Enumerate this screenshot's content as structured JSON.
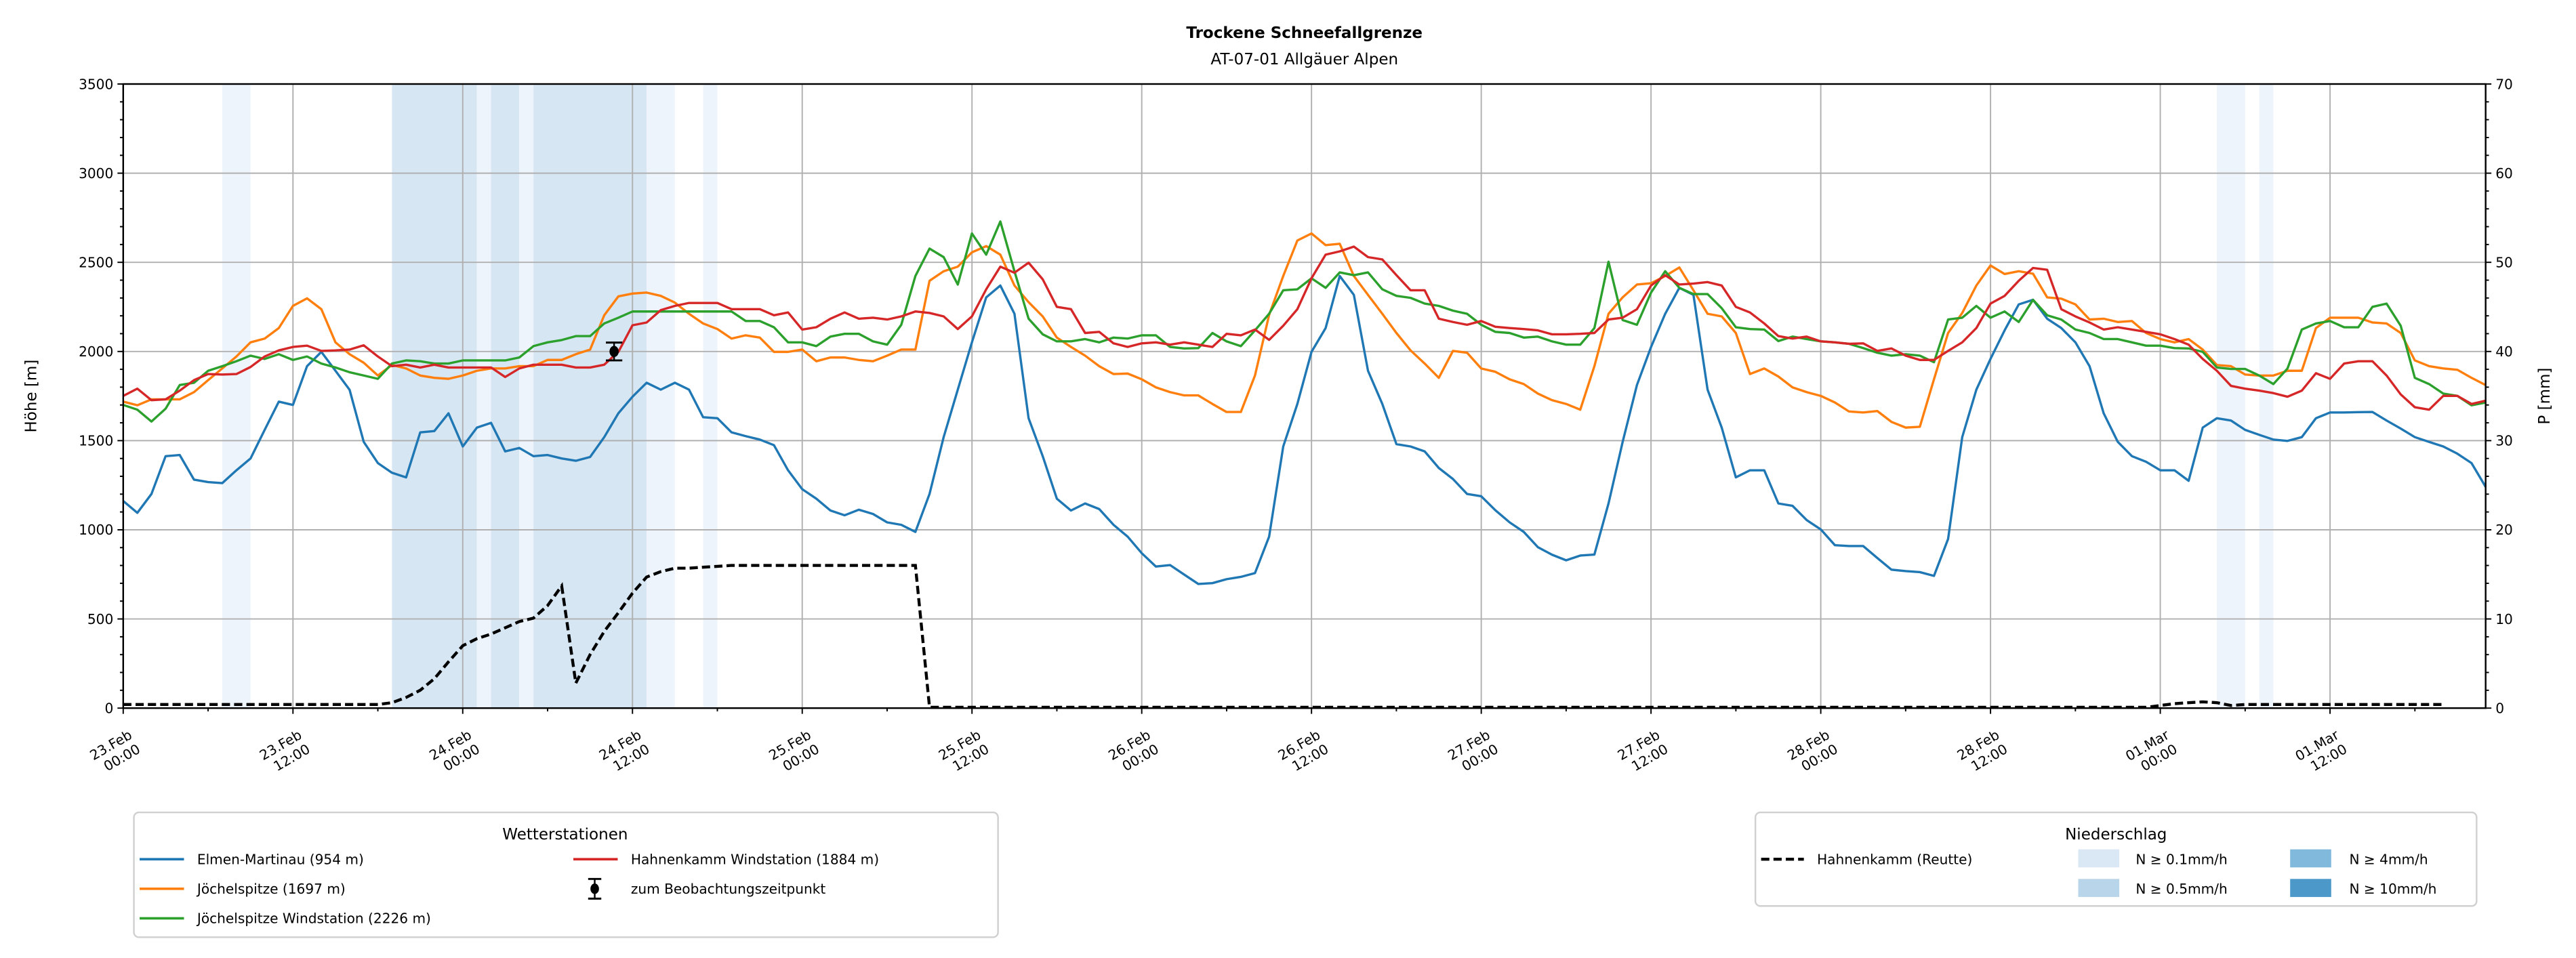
{
  "chart_data": {
    "type": "line",
    "title": "Trockene Schneefallgrenze",
    "subtitle": "AT-07-01 Allgäuer Alpen",
    "x_step_hours": 1,
    "x_range_hours": [
      0,
      167
    ],
    "x_ticks": [
      {
        "h": 0,
        "date": "23.Feb",
        "time": "00:00"
      },
      {
        "h": 12,
        "date": "23.Feb",
        "time": "12:00"
      },
      {
        "h": 24,
        "date": "24.Feb",
        "time": "00:00"
      },
      {
        "h": 36,
        "date": "24.Feb",
        "time": "12:00"
      },
      {
        "h": 48,
        "date": "25.Feb",
        "time": "00:00"
      },
      {
        "h": 60,
        "date": "25.Feb",
        "time": "12:00"
      },
      {
        "h": 72,
        "date": "26.Feb",
        "time": "00:00"
      },
      {
        "h": 84,
        "date": "26.Feb",
        "time": "12:00"
      },
      {
        "h": 96,
        "date": "27.Feb",
        "time": "00:00"
      },
      {
        "h": 108,
        "date": "27.Feb",
        "time": "12:00"
      },
      {
        "h": 120,
        "date": "28.Feb",
        "time": "00:00"
      },
      {
        "h": 132,
        "date": "28.Feb",
        "time": "12:00"
      },
      {
        "h": 144,
        "date": "01.Mar",
        "time": "00:00"
      },
      {
        "h": 156,
        "date": "01.Mar",
        "time": "12:00"
      }
    ],
    "ylabel": "Höhe [m]",
    "ylim": [
      0,
      3500
    ],
    "yticks": [
      "0",
      "500",
      "1000",
      "1500",
      "2000",
      "2500",
      "3000",
      "3500"
    ],
    "ylabel_right": "P [mm]",
    "ylim_right": [
      0,
      70
    ],
    "yticks_right": [
      "0",
      "10",
      "20",
      "30",
      "40",
      "50",
      "60",
      "70"
    ],
    "grid": true,
    "series": [
      {
        "name": "Elmen-Martinau (954 m)",
        "color": "#1f77b4",
        "values": [
          1161,
          1095,
          1201,
          1413,
          1419,
          1281,
          1267,
          1262,
          1334,
          1400,
          1560,
          1719,
          1700,
          1918,
          1998,
          1892,
          1785,
          1493,
          1374,
          1320,
          1294,
          1546,
          1554,
          1653,
          1467,
          1573,
          1600,
          1440,
          1459,
          1413,
          1419,
          1400,
          1387,
          1408,
          1520,
          1653,
          1746,
          1825,
          1786,
          1825,
          1786,
          1631,
          1626,
          1546,
          1525,
          1506,
          1475,
          1334,
          1228,
          1174,
          1108,
          1081,
          1113,
          1089,
          1042,
          1028,
          988,
          1201,
          1520,
          1786,
          2051,
          2304,
          2370,
          2211,
          1626,
          1413,
          1174,
          1108,
          1148,
          1116,
          1028,
          962,
          869,
          794,
          802,
          749,
          696,
          701,
          723,
          736,
          757,
          962,
          1467,
          1706,
          1998,
          2131,
          2423,
          2317,
          1892,
          1706,
          1480,
          1467,
          1440,
          1347,
          1285,
          1201,
          1188,
          1110,
          1042,
          988,
          903,
          860,
          829,
          856,
          861,
          1148,
          1493,
          1812,
          2025,
          2211,
          2357,
          2317,
          1786,
          1573,
          1294,
          1334,
          1334,
          1148,
          1135,
          1055,
          1002,
          914,
          909,
          909,
          842,
          776,
          768,
          763,
          741,
          949,
          1520,
          1786,
          1958,
          2118,
          2264,
          2290,
          2184,
          2131,
          2051,
          1918,
          1653,
          1493,
          1413,
          1382,
          1334,
          1334,
          1275,
          1573,
          1626,
          1613,
          1560,
          1533,
          1506,
          1499,
          1520,
          1626,
          1658,
          1658,
          1660,
          1661,
          1613,
          1568,
          1520,
          1493,
          1467,
          1427,
          1374,
          1241
        ]
      },
      {
        "name": "Jöchelspitze (1697 m)",
        "color": "#ff7f0e",
        "values": [
          1719,
          1698,
          1732,
          1732,
          1732,
          1772,
          1839,
          1905,
          1972,
          2051,
          2072,
          2131,
          2256,
          2298,
          2237,
          2051,
          1985,
          1937,
          1865,
          1924,
          1905,
          1865,
          1852,
          1847,
          1865,
          1892,
          1905,
          1905,
          1918,
          1918,
          1953,
          1953,
          1985,
          2011,
          2203,
          2309,
          2325,
          2330,
          2312,
          2274,
          2211,
          2157,
          2126,
          2072,
          2091,
          2078,
          1998,
          1998,
          2011,
          1945,
          1966,
          1966,
          1953,
          1945,
          1977,
          2011,
          2011,
          2397,
          2450,
          2476,
          2556,
          2591,
          2543,
          2370,
          2277,
          2197,
          2078,
          2025,
          1977,
          1918,
          1873,
          1876,
          1844,
          1799,
          1772,
          1754,
          1754,
          1706,
          1661,
          1661,
          1865,
          2205,
          2423,
          2622,
          2662,
          2596,
          2604,
          2423,
          2317,
          2211,
          2104,
          2006,
          1932,
          1852,
          2003,
          1993,
          1905,
          1886,
          1844,
          1817,
          1764,
          1727,
          1706,
          1674,
          1918,
          2211,
          2304,
          2375,
          2383,
          2423,
          2471,
          2343,
          2211,
          2197,
          2104,
          1873,
          1905,
          1860,
          1799,
          1772,
          1751,
          1714,
          1663,
          1658,
          1666,
          1605,
          1573,
          1578,
          1844,
          2104,
          2216,
          2370,
          2482,
          2434,
          2450,
          2436,
          2304,
          2296,
          2264,
          2179,
          2184,
          2165,
          2171,
          2104,
          2070,
          2051,
          2070,
          2011,
          1924,
          1918,
          1871,
          1865,
          1865,
          1892,
          1892,
          2131,
          2189,
          2189,
          2189,
          2163,
          2157,
          2104,
          1950,
          1918,
          1905,
          1897,
          1852,
          1812
        ]
      },
      {
        "name": "Jöchelspitze Windstation (2226 m)",
        "color": "#2ca02c",
        "values": [
          1700,
          1674,
          1607,
          1679,
          1812,
          1825,
          1892,
          1918,
          1945,
          1977,
          1958,
          1985,
          1953,
          1972,
          1932,
          1910,
          1884,
          1865,
          1847,
          1932,
          1950,
          1945,
          1932,
          1932,
          1950,
          1950,
          1950,
          1950,
          1966,
          2030,
          2051,
          2064,
          2086,
          2086,
          2157,
          2189,
          2224,
          2224,
          2224,
          2224,
          2224,
          2224,
          2224,
          2224,
          2171,
          2171,
          2136,
          2051,
          2051,
          2030,
          2083,
          2099,
          2099,
          2057,
          2038,
          2150,
          2423,
          2577,
          2529,
          2375,
          2662,
          2543,
          2729,
          2450,
          2184,
          2096,
          2057,
          2057,
          2070,
          2051,
          2078,
          2072,
          2091,
          2091,
          2025,
          2017,
          2019,
          2104,
          2057,
          2030,
          2118,
          2211,
          2343,
          2349,
          2410,
          2357,
          2444,
          2428,
          2444,
          2349,
          2312,
          2301,
          2269,
          2256,
          2229,
          2211,
          2150,
          2110,
          2104,
          2078,
          2083,
          2057,
          2038,
          2038,
          2131,
          2503,
          2176,
          2150,
          2330,
          2450,
          2357,
          2322,
          2322,
          2243,
          2136,
          2126,
          2123,
          2059,
          2083,
          2070,
          2057,
          2051,
          2043,
          2019,
          1993,
          1977,
          1985,
          1977,
          1940,
          2179,
          2189,
          2256,
          2189,
          2224,
          2165,
          2290,
          2203,
          2179,
          2123,
          2104,
          2070,
          2070,
          2051,
          2033,
          2033,
          2019,
          2017,
          1998,
          1910,
          1902,
          1902,
          1865,
          1817,
          1905,
          2123,
          2157,
          2171,
          2136,
          2136,
          2250,
          2269,
          2144,
          1852,
          1817,
          1764,
          1751,
          1698,
          1714
        ]
      },
      {
        "name": "Hahnenkamm Windstation (1884 m)",
        "color": "#d62728",
        "values": [
          1751,
          1791,
          1727,
          1732,
          1780,
          1839,
          1873,
          1871,
          1873,
          1913,
          1972,
          2006,
          2025,
          2033,
          2003,
          2006,
          2011,
          2035,
          1972,
          1918,
          1926,
          1910,
          1926,
          1910,
          1910,
          1910,
          1910,
          1857,
          1905,
          1926,
          1926,
          1926,
          1910,
          1910,
          1926,
          1998,
          2147,
          2163,
          2232,
          2256,
          2272,
          2272,
          2272,
          2237,
          2237,
          2237,
          2203,
          2219,
          2123,
          2136,
          2184,
          2219,
          2184,
          2189,
          2179,
          2197,
          2224,
          2216,
          2197,
          2126,
          2197,
          2349,
          2476,
          2442,
          2498,
          2405,
          2250,
          2237,
          2104,
          2110,
          2046,
          2025,
          2046,
          2051,
          2038,
          2051,
          2038,
          2025,
          2099,
          2091,
          2123,
          2065,
          2144,
          2237,
          2410,
          2543,
          2561,
          2588,
          2529,
          2516,
          2428,
          2343,
          2343,
          2184,
          2165,
          2150,
          2171,
          2139,
          2131,
          2126,
          2118,
          2096,
          2096,
          2099,
          2104,
          2179,
          2189,
          2237,
          2370,
          2428,
          2375,
          2381,
          2389,
          2370,
          2250,
          2219,
          2157,
          2086,
          2072,
          2083,
          2057,
          2051,
          2043,
          2046,
          2003,
          2017,
          1977,
          1953,
          1953,
          2003,
          2051,
          2131,
          2269,
          2312,
          2397,
          2468,
          2458,
          2237,
          2197,
          2163,
          2123,
          2136,
          2123,
          2110,
          2096,
          2070,
          2038,
          1958,
          1892,
          1807,
          1791,
          1780,
          1767,
          1746,
          1780,
          1878,
          1847,
          1932,
          1945,
          1945,
          1865,
          1759,
          1687,
          1674,
          1751,
          1751,
          1706,
          1724
        ]
      }
    ],
    "precipitation": {
      "name": "Hahnenkamm (Reutte)",
      "axis": "right",
      "values": [
        0.4,
        0.4,
        0.4,
        0.4,
        0.4,
        0.4,
        0.4,
        0.4,
        0.4,
        0.4,
        0.4,
        0.4,
        0.4,
        0.4,
        0.4,
        0.4,
        0.4,
        0.4,
        0.4,
        0.6,
        1.2,
        2.0,
        3.3,
        5.2,
        7.0,
        7.8,
        8.3,
        9.0,
        9.7,
        10.1,
        11.5,
        13.7,
        2.8,
        6.0,
        8.6,
        10.7,
        12.9,
        14.7,
        15.3,
        15.7,
        15.7,
        15.8,
        15.9,
        16.0,
        16.0,
        16.0,
        16.0,
        16.0,
        16.0,
        16.0,
        16.0,
        16.0,
        16.0,
        16.0,
        16.0,
        16.0,
        16.0,
        0.1,
        0.1,
        0.1,
        0.1,
        0.1,
        0.1,
        0.1,
        0.1,
        0.1,
        0.1,
        0.1,
        0.1,
        0.1,
        0.1,
        0.1,
        0.1,
        0.1,
        0.1,
        0.1,
        0.1,
        0.1,
        0.1,
        0.1,
        0.1,
        0.1,
        0.1,
        0.1,
        0.1,
        0.1,
        0.1,
        0.1,
        0.1,
        0.1,
        0.1,
        0.1,
        0.1,
        0.1,
        0.1,
        0.1,
        0.1,
        0.1,
        0.1,
        0.1,
        0.1,
        0.1,
        0.1,
        0.1,
        0.1,
        0.1,
        0.1,
        0.1,
        0.1,
        0.1,
        0.1,
        0.1,
        0.1,
        0.1,
        0.1,
        0.1,
        0.1,
        0.1,
        0.1,
        0.1,
        0.1,
        0.1,
        0.1,
        0.1,
        0.1,
        0.1,
        0.1,
        0.1,
        0.1,
        0.1,
        0.1,
        0.1,
        0.1,
        0.1,
        0.1,
        0.1,
        0.1,
        0.1,
        0.1,
        0.1,
        0.1,
        0.1,
        0.1,
        0.1,
        0.3,
        0.5,
        0.6,
        0.7,
        0.6,
        0.3,
        0.4,
        0.4,
        0.4,
        0.4,
        0.4,
        0.4,
        0.4,
        0.4,
        0.4,
        0.4,
        0.4,
        0.4,
        0.4,
        0.4,
        0.4
      ]
    },
    "precip_bands": [
      {
        "start": 7,
        "end": 9,
        "level": "N ≥ 0.1mm/h"
      },
      {
        "start": 19,
        "end": 25,
        "level": "N ≥ 0.5mm/h"
      },
      {
        "start": 25,
        "end": 26,
        "level": "N ≥ 0.1mm/h"
      },
      {
        "start": 26,
        "end": 28,
        "level": "N ≥ 0.5mm/h"
      },
      {
        "start": 28,
        "end": 29,
        "level": "N ≥ 0.1mm/h"
      },
      {
        "start": 29,
        "end": 37,
        "level": "N ≥ 0.5mm/h"
      },
      {
        "start": 37,
        "end": 39,
        "level": "N ≥ 0.1mm/h"
      },
      {
        "start": 41,
        "end": 42,
        "level": "N ≥ 0.1mm/h"
      },
      {
        "start": 148,
        "end": 150,
        "level": "N ≥ 0.1mm/h"
      },
      {
        "start": 151,
        "end": 152,
        "level": "N ≥ 0.1mm/h"
      }
    ],
    "observation": {
      "name": "zum Beobachtungszeitpunkt",
      "h": 34.7,
      "value": 2000,
      "error": [
        1950,
        2050
      ]
    },
    "legend_stations": {
      "title": "Wetterstationen",
      "placement": "bottom-left"
    },
    "legend_precip": {
      "title": "Niederschlag",
      "placement": "bottom-right",
      "levels": [
        {
          "label": "N ≥ 0.1mm/h",
          "color": "#dae8f5"
        },
        {
          "label": "N ≥ 0.5mm/h",
          "color": "#b9d5ea"
        },
        {
          "label": "N ≥ 4mm/h",
          "color": "#80b9dc"
        },
        {
          "label": "N ≥ 10mm/h",
          "color": "#4b98c9"
        }
      ]
    }
  }
}
